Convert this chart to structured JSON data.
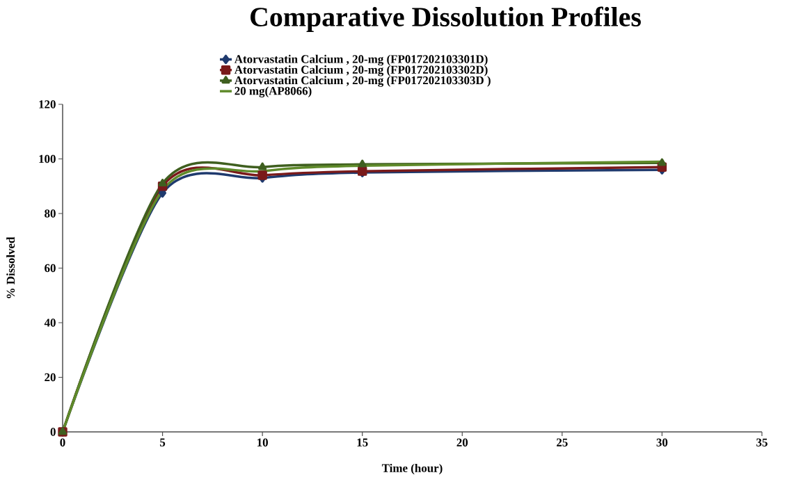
{
  "chart_data": {
    "type": "line",
    "title": "Comparative Dissolution Profiles",
    "xlabel": "Time (hour)",
    "ylabel": "% Dissolved",
    "x": [
      0,
      5,
      10,
      15,
      30
    ],
    "series": [
      {
        "name": "Atorvastatin Calcium , 20-mg (FP017202103301D)",
        "color": "#1f3a6e",
        "marker": "diamond",
        "values": [
          0,
          87.5,
          93,
          95,
          96
        ]
      },
      {
        "name": "Atorvastatin Calcium , 20-mg (FP017202103302D)",
        "color": "#7a1a1a",
        "marker": "square",
        "values": [
          0,
          90,
          94,
          95.5,
          97
        ]
      },
      {
        "name": "Atorvastatin Calcium , 20-mg (FP017202103303D )",
        "color": "#3f5f1f",
        "marker": "triangle",
        "values": [
          0,
          91,
          97,
          98,
          98.5
        ]
      },
      {
        "name": "20 mg(AP8066)",
        "color": "#5f8a2a",
        "marker": "none",
        "values": [
          0,
          88.5,
          95.5,
          97.5,
          99
        ]
      }
    ],
    "xlim": [
      0,
      35
    ],
    "ylim": [
      0,
      120
    ],
    "xticks": [
      0,
      5,
      10,
      15,
      20,
      25,
      30,
      35
    ],
    "yticks": [
      0,
      20,
      40,
      60,
      80,
      100,
      120
    ],
    "grid": false,
    "legend": "top",
    "line_style": "solid"
  }
}
